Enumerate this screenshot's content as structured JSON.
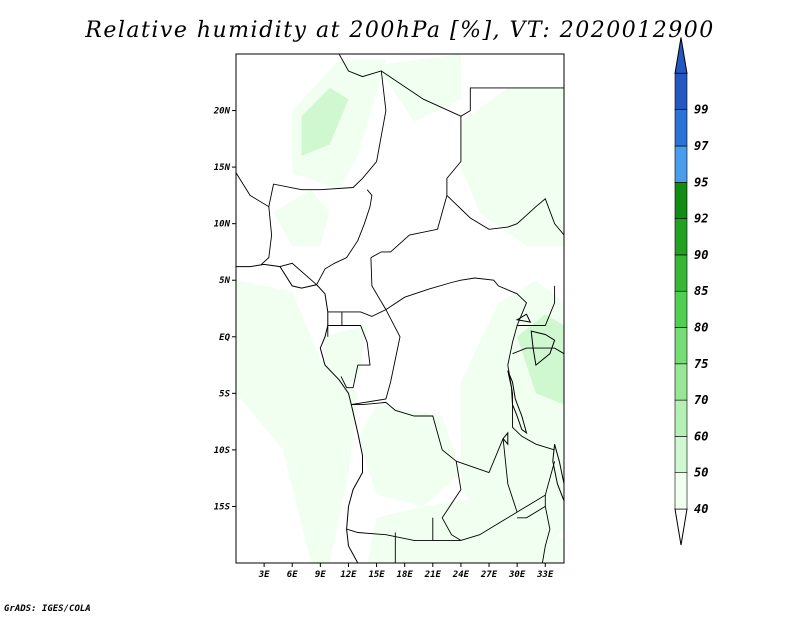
{
  "title": "Relative humidity at 200hPa [%], VT: 2020012900",
  "credit": "GrADS: IGES/COLA",
  "map": {
    "lon_range": [
      0,
      35
    ],
    "lat_range": [
      -20,
      25
    ],
    "lon_ticks": [
      {
        "value": 3,
        "label": "3E"
      },
      {
        "value": 6,
        "label": "6E"
      },
      {
        "value": 9,
        "label": "9E"
      },
      {
        "value": 12,
        "label": "12E"
      },
      {
        "value": 15,
        "label": "15E"
      },
      {
        "value": 18,
        "label": "18E"
      },
      {
        "value": 21,
        "label": "21E"
      },
      {
        "value": 24,
        "label": "24E"
      },
      {
        "value": 27,
        "label": "27E"
      },
      {
        "value": 30,
        "label": "30E"
      },
      {
        "value": 33,
        "label": "33E"
      }
    ],
    "lat_ticks": [
      {
        "value": 20,
        "label": "20N"
      },
      {
        "value": 15,
        "label": "15N"
      },
      {
        "value": 10,
        "label": "10N"
      },
      {
        "value": 5,
        "label": "5N"
      },
      {
        "value": 0,
        "label": "EQ"
      },
      {
        "value": -5,
        "label": "5S"
      },
      {
        "value": -10,
        "label": "10S"
      },
      {
        "value": -15,
        "label": "15S"
      }
    ],
    "humid_regions": [
      {
        "level": 50,
        "points": [
          [
            6,
            20
          ],
          [
            11,
            24.5
          ],
          [
            16,
            24.5
          ],
          [
            13,
            16
          ],
          [
            11,
            13
          ],
          [
            6,
            14.5
          ]
        ]
      },
      {
        "level": 60,
        "points": [
          [
            7,
            19.5
          ],
          [
            10,
            22
          ],
          [
            12,
            21
          ],
          [
            10,
            17
          ],
          [
            7,
            16
          ]
        ]
      },
      {
        "level": 50,
        "points": [
          [
            15,
            24
          ],
          [
            24,
            25
          ],
          [
            24,
            21
          ],
          [
            19,
            19
          ]
        ]
      },
      {
        "level": 50,
        "points": [
          [
            24,
            19
          ],
          [
            29,
            22
          ],
          [
            35,
            22
          ],
          [
            35,
            8
          ],
          [
            31,
            8
          ],
          [
            26,
            11
          ],
          [
            24,
            15
          ]
        ]
      },
      {
        "level": 40,
        "points": [
          [
            0,
            17
          ],
          [
            3,
            17
          ],
          [
            4,
            11
          ],
          [
            8,
            12
          ],
          [
            13,
            11
          ],
          [
            13,
            6
          ],
          [
            10,
            4
          ],
          [
            6,
            1
          ],
          [
            2,
            -4
          ],
          [
            0,
            -4
          ]
        ]
      },
      {
        "level": 50,
        "points": [
          [
            4,
            11
          ],
          [
            8,
            13
          ],
          [
            10,
            11
          ],
          [
            9,
            8
          ],
          [
            6,
            8
          ]
        ]
      },
      {
        "level": 50,
        "points": [
          [
            0,
            5
          ],
          [
            6,
            4
          ],
          [
            9,
            -2
          ],
          [
            13,
            -5
          ],
          [
            12,
            -12
          ],
          [
            10,
            -20
          ],
          [
            8,
            -20
          ],
          [
            5,
            -10
          ],
          [
            0,
            -5
          ]
        ]
      },
      {
        "level": 40,
        "points": [
          [
            0,
            -5
          ],
          [
            5,
            -10
          ],
          [
            8,
            -20
          ],
          [
            0,
            -20
          ]
        ]
      },
      {
        "level": 50,
        "points": [
          [
            9,
            0
          ],
          [
            14,
            1
          ],
          [
            13,
            -4
          ],
          [
            10,
            -4
          ]
        ]
      },
      {
        "level": 50,
        "points": [
          [
            15,
            -6
          ],
          [
            22,
            -7
          ],
          [
            24,
            -12
          ],
          [
            20,
            -15
          ],
          [
            15,
            -14
          ],
          [
            13,
            -9
          ]
        ]
      },
      {
        "level": 50,
        "points": [
          [
            24,
            -4
          ],
          [
            28,
            3
          ],
          [
            32,
            5
          ],
          [
            35,
            3
          ],
          [
            35,
            -17
          ],
          [
            31,
            -20
          ],
          [
            27,
            -18
          ],
          [
            24,
            -13
          ]
        ]
      },
      {
        "level": 50,
        "points": [
          [
            20,
            -15
          ],
          [
            28,
            -14
          ],
          [
            35,
            -18
          ],
          [
            35,
            -20
          ],
          [
            14,
            -20
          ],
          [
            15,
            -16
          ]
        ]
      },
      {
        "level": 60,
        "points": [
          [
            30,
            0
          ],
          [
            33,
            2
          ],
          [
            35,
            1
          ],
          [
            35,
            -6
          ],
          [
            32,
            -5
          ]
        ]
      }
    ],
    "borders": [
      [
        [
          11,
          25
        ],
        [
          12,
          23.5
        ],
        [
          13.5,
          23
        ],
        [
          15.5,
          23.5
        ],
        [
          16,
          20
        ],
        [
          15,
          15.5
        ],
        [
          13.5,
          14
        ],
        [
          12.5,
          13.2
        ],
        [
          9,
          13
        ],
        [
          7,
          13
        ],
        [
          4,
          13.5
        ],
        [
          3.5,
          11.5
        ],
        [
          1.5,
          12.5
        ],
        [
          0,
          14.5
        ]
      ],
      [
        [
          3.5,
          11.5
        ],
        [
          3.8,
          9
        ],
        [
          3.5,
          7
        ],
        [
          2.7,
          6.4
        ]
      ],
      [
        [
          4.7,
          6.2
        ],
        [
          6,
          6.5
        ],
        [
          8.6,
          4.6
        ],
        [
          9.5,
          6
        ],
        [
          10.5,
          6.5
        ],
        [
          11.8,
          7
        ],
        [
          13,
          8.5
        ],
        [
          13.7,
          10
        ],
        [
          14.3,
          11.5
        ],
        [
          14.5,
          12.5
        ],
        [
          14,
          13
        ]
      ],
      [
        [
          15.5,
          23.5
        ],
        [
          20,
          21
        ],
        [
          24,
          19.5
        ],
        [
          24,
          15.5
        ],
        [
          22.5,
          14
        ],
        [
          22.5,
          12.5
        ],
        [
          22,
          11
        ],
        [
          21.5,
          9.5
        ],
        [
          18.5,
          9
        ],
        [
          16.5,
          7.5
        ],
        [
          15.5,
          7.5
        ],
        [
          14.4,
          7
        ]
      ],
      [
        [
          14.4,
          7
        ],
        [
          14.5,
          4.5
        ],
        [
          16,
          2.4
        ],
        [
          14.5,
          1.8
        ],
        [
          13.3,
          2.2
        ],
        [
          11.3,
          2.2
        ],
        [
          9.8,
          2.2
        ]
      ],
      [
        [
          16,
          2.4
        ],
        [
          18,
          3.5
        ],
        [
          20.5,
          4.2
        ],
        [
          23,
          4.8
        ],
        [
          24,
          5
        ],
        [
          25.5,
          5.2
        ],
        [
          27.5,
          5
        ],
        [
          28,
          4.5
        ],
        [
          30,
          3.8
        ],
        [
          31,
          3
        ],
        [
          30,
          1
        ],
        [
          29.5,
          -0.5
        ],
        [
          29,
          -2.5
        ]
      ],
      [
        [
          24,
          19.5
        ],
        [
          25,
          20
        ],
        [
          25,
          22
        ],
        [
          35,
          22
        ]
      ],
      [
        [
          22.5,
          12.5
        ],
        [
          25,
          10.5
        ],
        [
          27,
          9.5
        ],
        [
          29,
          9.7
        ],
        [
          30,
          10
        ],
        [
          32,
          11.5
        ],
        [
          33,
          12.2
        ],
        [
          34,
          10
        ],
        [
          35,
          9
        ]
      ],
      [
        [
          11.3,
          2.2
        ],
        [
          11.3,
          1
        ],
        [
          9.8,
          1
        ],
        [
          9.8,
          0
        ]
      ],
      [
        [
          11.3,
          1
        ],
        [
          13.3,
          1
        ],
        [
          14,
          -0.5
        ],
        [
          14.3,
          -2.5
        ],
        [
          13,
          -2.5
        ],
        [
          12.5,
          -4.5
        ],
        [
          11.8,
          -4.5
        ],
        [
          11.2,
          -3.5
        ]
      ],
      [
        [
          16,
          2.4
        ],
        [
          17.5,
          0
        ],
        [
          17,
          -2
        ],
        [
          16.5,
          -4
        ],
        [
          16,
          -5.5
        ],
        [
          12.3,
          -6
        ]
      ],
      [
        [
          12.3,
          -6
        ],
        [
          13.5,
          -6
        ],
        [
          16,
          -5.8
        ],
        [
          17,
          -6.5
        ],
        [
          19,
          -7
        ],
        [
          21,
          -7
        ],
        [
          22,
          -10
        ],
        [
          23.5,
          -11
        ],
        [
          24,
          -13.5
        ],
        [
          22,
          -16
        ],
        [
          23,
          -17.5
        ],
        [
          24,
          -18
        ]
      ],
      [
        [
          21,
          -16
        ],
        [
          21,
          -18
        ],
        [
          19,
          -18
        ],
        [
          16,
          -17.5
        ],
        [
          13,
          -17.3
        ],
        [
          11.8,
          -17
        ]
      ],
      [
        [
          23.5,
          -11
        ],
        [
          27,
          -12
        ],
        [
          28.5,
          -9
        ],
        [
          29,
          -13
        ],
        [
          30,
          -15.5
        ],
        [
          33,
          -14
        ],
        [
          34,
          -11
        ]
      ],
      [
        [
          29,
          -2.5
        ],
        [
          29.5,
          -5
        ],
        [
          29.5,
          -8
        ],
        [
          30.5,
          -8.8
        ],
        [
          32,
          -9.5
        ],
        [
          34,
          -10
        ]
      ],
      [
        [
          30,
          1
        ],
        [
          31,
          1
        ],
        [
          33,
          1
        ],
        [
          34,
          3
        ],
        [
          34,
          4.5
        ]
      ],
      [
        [
          29.5,
          -1.5
        ],
        [
          31,
          -1
        ],
        [
          34,
          -1
        ],
        [
          35,
          -1.5
        ]
      ],
      [
        [
          24,
          -18
        ],
        [
          26,
          -17.5
        ],
        [
          28,
          -16.5
        ],
        [
          30,
          -15.5
        ]
      ],
      [
        [
          33,
          -14
        ],
        [
          33,
          -15
        ],
        [
          33.5,
          -17
        ],
        [
          33,
          -18.5
        ],
        [
          32.7,
          -20
        ]
      ],
      [
        [
          30,
          -16
        ],
        [
          31,
          -16
        ],
        [
          33,
          -15
        ]
      ],
      [
        [
          17,
          -17.3
        ],
        [
          17,
          -20
        ]
      ],
      [
        [
          21,
          -18
        ],
        [
          24,
          -18
        ]
      ]
    ],
    "coastlines": [
      [
        [
          0,
          6.2
        ],
        [
          1.5,
          6.2
        ],
        [
          3,
          6.4
        ],
        [
          4.7,
          6.2
        ],
        [
          6,
          4.5
        ],
        [
          7,
          4.3
        ],
        [
          8.6,
          4.6
        ],
        [
          9.5,
          3.8
        ],
        [
          9.8,
          2.2
        ],
        [
          9.8,
          1
        ],
        [
          9.5,
          0
        ],
        [
          9,
          -1
        ],
        [
          9.5,
          -2.5
        ],
        [
          11,
          -3.8
        ],
        [
          12,
          -5
        ],
        [
          12.3,
          -6
        ],
        [
          13,
          -8.5
        ],
        [
          13.5,
          -10.5
        ],
        [
          13.5,
          -12
        ],
        [
          12.5,
          -13.5
        ],
        [
          12,
          -15
        ],
        [
          11.8,
          -17
        ],
        [
          12,
          -18.5
        ],
        [
          13,
          -20
        ]
      ],
      [
        [
          0,
          -18
        ],
        [
          0,
          -20
        ]
      ]
    ],
    "lakes": [
      [
        [
          29,
          -3
        ],
        [
          29.4,
          -4.5
        ],
        [
          29.5,
          -6
        ],
        [
          30,
          -7
        ],
        [
          30.5,
          -8.2
        ],
        [
          31,
          -8.5
        ],
        [
          30.5,
          -7
        ],
        [
          29.8,
          -5.5
        ],
        [
          29.5,
          -4
        ]
      ],
      [
        [
          31.5,
          0.5
        ],
        [
          33,
          0.2
        ],
        [
          34,
          -0.3
        ],
        [
          33.5,
          -1.5
        ],
        [
          32,
          -2.5
        ],
        [
          31.7,
          -1
        ]
      ],
      [
        [
          34,
          -9.5
        ],
        [
          34.5,
          -11
        ],
        [
          35,
          -13
        ],
        [
          35,
          -14.5
        ],
        [
          34.3,
          -13
        ],
        [
          33.8,
          -11
        ]
      ],
      [
        [
          28.5,
          -9
        ],
        [
          29,
          -9.5
        ],
        [
          29,
          -8.5
        ]
      ],
      [
        [
          30,
          1.5
        ],
        [
          31,
          2
        ],
        [
          31.4,
          1.3
        ]
      ]
    ]
  },
  "colorbar": {
    "levels": [
      {
        "label": "40",
        "color": "#ffffff"
      },
      {
        "label": "50",
        "color": "#f0fff0"
      },
      {
        "label": "60",
        "color": "#d0f8d0"
      },
      {
        "label": "70",
        "color": "#b4f0b4"
      },
      {
        "label": "75",
        "color": "#96e896"
      },
      {
        "label": "80",
        "color": "#76dd76"
      },
      {
        "label": "85",
        "color": "#50cf50"
      },
      {
        "label": "90",
        "color": "#36b836"
      },
      {
        "label": "92",
        "color": "#22a022"
      },
      {
        "label": "95",
        "color": "#128c12"
      },
      {
        "label": "97",
        "color": "#4a9cec"
      },
      {
        "label": "99",
        "color": "#2a74d8"
      }
    ],
    "top_color": "#2258c0"
  }
}
